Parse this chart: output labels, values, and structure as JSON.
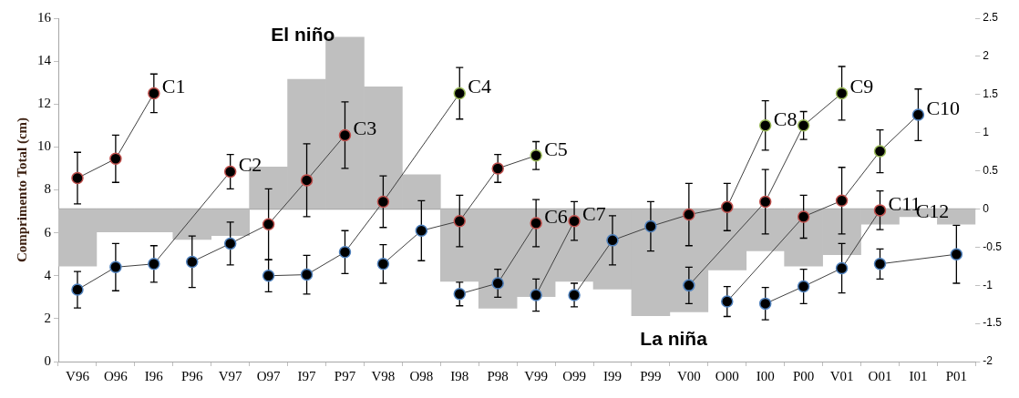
{
  "chart_data": {
    "type": "line",
    "ylabel": "Comprimento Total (cm)",
    "categories": [
      "V96",
      "O96",
      "I96",
      "P96",
      "V97",
      "O97",
      "I97",
      "P97",
      "V98",
      "O98",
      "I98",
      "P98",
      "V99",
      "O99",
      "I99",
      "P99",
      "V00",
      "O00",
      "I00",
      "P00",
      "V01",
      "O01",
      "I01",
      "P01"
    ],
    "ylim": [
      0,
      16
    ],
    "yticks": [
      0,
      2,
      4,
      6,
      8,
      10,
      12,
      14,
      16
    ],
    "y2lim": [
      -2,
      2.5
    ],
    "y2ticks": [
      -2,
      -1.5,
      -1,
      -0.5,
      0,
      0.5,
      1,
      1.5,
      2,
      2.5
    ],
    "grid": false,
    "legend": false,
    "marker": "circle",
    "line_style": "solid",
    "ref_lines": [
      {
        "axis": "y2",
        "value": 0,
        "color": "#a6a6a6"
      }
    ],
    "annotations": [
      "El niño",
      "La niña"
    ],
    "series": [
      {
        "type": "bar",
        "axis": "y2",
        "color": "#bfbfbf",
        "values": [
          -0.75,
          -0.3,
          -0.3,
          -0.4,
          -0.35,
          0.55,
          1.7,
          2.25,
          1.6,
          0.45,
          -0.95,
          -1.3,
          -1.15,
          -0.95,
          -1.05,
          -1.4,
          -1.35,
          -0.8,
          -0.55,
          -0.75,
          -0.6,
          -0.2,
          -0.1,
          -0.2
        ]
      },
      {
        "name": "C1",
        "color": "#404040",
        "values": [
          8.55,
          9.45,
          12.5,
          null,
          null,
          null,
          null,
          null,
          null,
          null,
          null,
          null,
          null,
          null,
          null,
          null,
          null,
          null,
          null,
          null,
          null,
          null,
          null,
          null
        ],
        "errors": [
          1.2,
          1.1,
          0.9,
          null,
          null,
          null,
          null,
          null,
          null,
          null,
          null,
          null,
          null,
          null,
          null,
          null,
          null,
          null,
          null,
          null,
          null,
          null,
          null,
          null
        ],
        "colors": [
          "#c0504d",
          "#c0504d",
          "#c0504d",
          null,
          null,
          null,
          null,
          null,
          null,
          null,
          null,
          null,
          null,
          null,
          null,
          null,
          null,
          null,
          null,
          null,
          null,
          null,
          null,
          null
        ]
      },
      {
        "name": "C2",
        "color": "#404040",
        "values": [
          3.35,
          4.4,
          4.55,
          null,
          8.85,
          null,
          null,
          null,
          null,
          null,
          null,
          null,
          null,
          null,
          null,
          null,
          null,
          null,
          null,
          null,
          null,
          null,
          null,
          null
        ],
        "errors": [
          0.85,
          1.1,
          0.85,
          null,
          0.8,
          null,
          null,
          null,
          null,
          null,
          null,
          null,
          null,
          null,
          null,
          null,
          null,
          null,
          null,
          null,
          null,
          null,
          null,
          null
        ],
        "colors": [
          "#4f81bd",
          "#4f81bd",
          "#4f81bd",
          null,
          "#c0504d",
          null,
          null,
          null,
          null,
          null,
          null,
          null,
          null,
          null,
          null,
          null,
          null,
          null,
          null,
          null,
          null,
          null,
          null,
          null
        ]
      },
      {
        "name": "C3",
        "color": "#404040",
        "values": [
          null,
          null,
          null,
          4.65,
          5.5,
          6.4,
          8.45,
          10.55,
          null,
          null,
          null,
          null,
          null,
          null,
          null,
          null,
          null,
          null,
          null,
          null,
          null,
          null,
          null,
          null
        ],
        "errors": [
          null,
          null,
          null,
          1.2,
          1.0,
          1.65,
          1.7,
          1.55,
          null,
          null,
          null,
          null,
          null,
          null,
          null,
          null,
          null,
          null,
          null,
          null,
          null,
          null,
          null,
          null
        ],
        "colors": [
          null,
          null,
          null,
          "#4f81bd",
          "#4f81bd",
          "#c0504d",
          "#c0504d",
          "#c0504d",
          null,
          null,
          null,
          null,
          null,
          null,
          null,
          null,
          null,
          null,
          null,
          null,
          null,
          null,
          null,
          null
        ]
      },
      {
        "name": "C4",
        "color": "#404040",
        "values": [
          null,
          null,
          null,
          null,
          null,
          4.0,
          4.05,
          5.1,
          7.45,
          null,
          12.5,
          null,
          null,
          null,
          null,
          null,
          null,
          null,
          null,
          null,
          null,
          null,
          null,
          null
        ],
        "errors": [
          null,
          null,
          null,
          null,
          null,
          0.75,
          0.9,
          1.0,
          1.2,
          null,
          1.2,
          null,
          null,
          null,
          null,
          null,
          null,
          null,
          null,
          null,
          null,
          null,
          null,
          null
        ],
        "colors": [
          null,
          null,
          null,
          null,
          null,
          "#4f81bd",
          "#4f81bd",
          "#4f81bd",
          "#c0504d",
          null,
          "#9bbb59",
          null,
          null,
          null,
          null,
          null,
          null,
          null,
          null,
          null,
          null,
          null,
          null,
          null
        ]
      },
      {
        "name": "C5",
        "color": "#404040",
        "values": [
          null,
          null,
          null,
          null,
          null,
          null,
          null,
          null,
          4.55,
          6.1,
          6.55,
          9.0,
          9.6,
          null,
          null,
          null,
          null,
          null,
          null,
          null,
          null,
          null,
          null,
          null
        ],
        "errors": [
          null,
          null,
          null,
          null,
          null,
          null,
          null,
          null,
          0.9,
          1.4,
          1.2,
          0.65,
          0.65,
          null,
          null,
          null,
          null,
          null,
          null,
          null,
          null,
          null,
          null,
          null
        ],
        "colors": [
          null,
          null,
          null,
          null,
          null,
          null,
          null,
          null,
          "#4f81bd",
          "#4f81bd",
          "#c0504d",
          "#c0504d",
          "#9bbb59",
          null,
          null,
          null,
          null,
          null,
          null,
          null,
          null,
          null,
          null,
          null
        ]
      },
      {
        "name": "C6",
        "color": "#404040",
        "values": [
          null,
          null,
          null,
          null,
          null,
          null,
          null,
          null,
          null,
          null,
          3.15,
          3.65,
          6.45,
          null,
          null,
          null,
          null,
          null,
          null,
          null,
          null,
          null,
          null,
          null
        ],
        "errors": [
          null,
          null,
          null,
          null,
          null,
          null,
          null,
          null,
          null,
          null,
          0.55,
          0.65,
          1.1,
          null,
          null,
          null,
          null,
          null,
          null,
          null,
          null,
          null,
          null,
          null
        ],
        "colors": [
          null,
          null,
          null,
          null,
          null,
          null,
          null,
          null,
          null,
          null,
          "#4f81bd",
          "#4f81bd",
          "#c0504d",
          null,
          null,
          null,
          null,
          null,
          null,
          null,
          null,
          null,
          null,
          null
        ]
      },
      {
        "name": "C7",
        "color": "#404040",
        "values": [
          null,
          null,
          null,
          null,
          null,
          null,
          null,
          null,
          null,
          null,
          null,
          null,
          3.1,
          6.55,
          null,
          null,
          null,
          null,
          null,
          null,
          null,
          null,
          null,
          null
        ],
        "errors": [
          null,
          null,
          null,
          null,
          null,
          null,
          null,
          null,
          null,
          null,
          null,
          null,
          0.75,
          0.9,
          null,
          null,
          null,
          null,
          null,
          null,
          null,
          null,
          null,
          null
        ],
        "colors": [
          null,
          null,
          null,
          null,
          null,
          null,
          null,
          null,
          null,
          null,
          null,
          null,
          "#4f81bd",
          "#c0504d",
          null,
          null,
          null,
          null,
          null,
          null,
          null,
          null,
          null,
          null
        ]
      },
      {
        "name": "C8",
        "color": "#404040",
        "values": [
          null,
          null,
          null,
          null,
          null,
          null,
          null,
          null,
          null,
          null,
          null,
          null,
          null,
          3.1,
          5.65,
          6.3,
          6.85,
          7.2,
          11.0,
          null,
          null,
          null,
          null,
          null
        ],
        "errors": [
          null,
          null,
          null,
          null,
          null,
          null,
          null,
          null,
          null,
          null,
          null,
          null,
          null,
          0.55,
          1.15,
          1.15,
          1.45,
          1.1,
          1.15,
          null,
          null,
          null,
          null,
          null
        ],
        "colors": [
          null,
          null,
          null,
          null,
          null,
          null,
          null,
          null,
          null,
          null,
          null,
          null,
          null,
          "#4f81bd",
          "#4f81bd",
          "#4f81bd",
          "#c0504d",
          "#c0504d",
          "#9bbb59",
          null,
          null,
          null,
          null,
          null
        ]
      },
      {
        "name": "C9",
        "color": "#404040",
        "values": [
          null,
          null,
          null,
          null,
          null,
          null,
          null,
          null,
          null,
          null,
          null,
          null,
          null,
          null,
          null,
          null,
          3.55,
          null,
          7.45,
          11.0,
          12.5,
          null,
          null,
          null
        ],
        "errors": [
          null,
          null,
          null,
          null,
          null,
          null,
          null,
          null,
          null,
          null,
          null,
          null,
          null,
          null,
          null,
          null,
          0.85,
          null,
          1.5,
          0.65,
          1.25,
          null,
          null,
          null
        ],
        "colors": [
          null,
          null,
          null,
          null,
          null,
          null,
          null,
          null,
          null,
          null,
          null,
          null,
          null,
          null,
          null,
          null,
          "#4f81bd",
          null,
          "#c0504d",
          "#9bbb59",
          "#9bbb59",
          null,
          null,
          null
        ]
      },
      {
        "name": "C10",
        "color": "#404040",
        "values": [
          null,
          null,
          null,
          null,
          null,
          null,
          null,
          null,
          null,
          null,
          null,
          null,
          null,
          null,
          null,
          null,
          null,
          2.8,
          null,
          6.75,
          7.5,
          9.8,
          11.5,
          null
        ],
        "errors": [
          null,
          null,
          null,
          null,
          null,
          null,
          null,
          null,
          null,
          null,
          null,
          null,
          null,
          null,
          null,
          null,
          null,
          0.7,
          null,
          1.0,
          1.55,
          1.0,
          1.2,
          null
        ],
        "colors": [
          null,
          null,
          null,
          null,
          null,
          null,
          null,
          null,
          null,
          null,
          null,
          null,
          null,
          null,
          null,
          null,
          null,
          "#4f81bd",
          null,
          "#c0504d",
          "#c0504d",
          "#9bbb59",
          "#4f81bd",
          null
        ]
      },
      {
        "name": "C11",
        "color": "#404040",
        "values": [
          null,
          null,
          null,
          null,
          null,
          null,
          null,
          null,
          null,
          null,
          null,
          null,
          null,
          null,
          null,
          null,
          null,
          null,
          2.7,
          3.5,
          4.35,
          7.05,
          null,
          null
        ],
        "errors": [
          null,
          null,
          null,
          null,
          null,
          null,
          null,
          null,
          null,
          null,
          null,
          null,
          null,
          null,
          null,
          null,
          null,
          null,
          0.75,
          0.8,
          1.15,
          0.9,
          null,
          null
        ],
        "colors": [
          null,
          null,
          null,
          null,
          null,
          null,
          null,
          null,
          null,
          null,
          null,
          null,
          null,
          null,
          null,
          null,
          null,
          null,
          "#4f81bd",
          "#4f81bd",
          "#4f81bd",
          "#c0504d",
          null,
          null
        ]
      },
      {
        "name": "C12",
        "color": "#404040",
        "values": [
          null,
          null,
          null,
          null,
          null,
          null,
          null,
          null,
          null,
          null,
          null,
          null,
          null,
          null,
          null,
          null,
          null,
          null,
          null,
          null,
          null,
          4.55,
          null,
          5.0
        ],
        "errors": [
          null,
          null,
          null,
          null,
          null,
          null,
          null,
          null,
          null,
          null,
          null,
          null,
          null,
          null,
          null,
          null,
          null,
          null,
          null,
          null,
          null,
          0.7,
          null,
          1.35
        ],
        "colors": [
          null,
          null,
          null,
          null,
          null,
          null,
          null,
          null,
          null,
          null,
          null,
          null,
          null,
          null,
          null,
          null,
          null,
          null,
          null,
          null,
          null,
          "#4f81bd",
          null,
          "#4f81bd"
        ]
      }
    ]
  }
}
